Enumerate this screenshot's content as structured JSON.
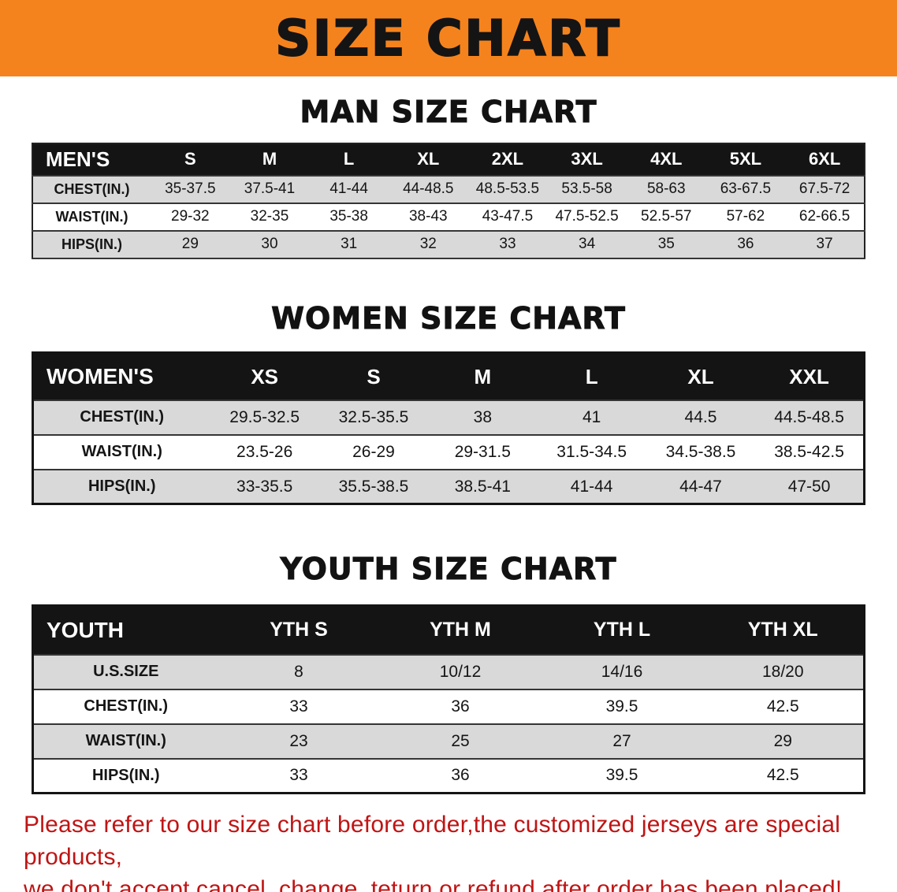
{
  "banner": {
    "title": "SIZE CHART"
  },
  "colors": {
    "banner_bg": "#f5831d",
    "table_header_bg": "#141414",
    "row_stripe": "#d9d9d9",
    "disclaimer_text": "#c01414",
    "title_text": "#141414"
  },
  "sections": [
    {
      "id": "men",
      "heading": "MAN SIZE CHART",
      "table": {
        "header": [
          "MEN'S",
          "S",
          "M",
          "L",
          "XL",
          "2XL",
          "3XL",
          "4XL",
          "5XL",
          "6XL"
        ],
        "rows": [
          [
            "CHEST(IN.)",
            "35-37.5",
            "37.5-41",
            "41-44",
            "44-48.5",
            "48.5-53.5",
            "53.5-58",
            "58-63",
            "63-67.5",
            "67.5-72"
          ],
          [
            "WAIST(IN.)",
            "29-32",
            "32-35",
            "35-38",
            "38-43",
            "43-47.5",
            "47.5-52.5",
            "52.5-57",
            "57-62",
            "62-66.5"
          ],
          [
            "HIPS(IN.)",
            "29",
            "30",
            "31",
            "32",
            "33",
            "34",
            "35",
            "36",
            "37"
          ]
        ]
      }
    },
    {
      "id": "women",
      "heading": "WOMEN SIZE CHART",
      "table": {
        "header": [
          "WOMEN'S",
          "XS",
          "S",
          "M",
          "L",
          "XL",
          "XXL"
        ],
        "rows": [
          [
            "CHEST(IN.)",
            "29.5-32.5",
            "32.5-35.5",
            "38",
            "41",
            "44.5",
            "44.5-48.5"
          ],
          [
            "WAIST(IN.)",
            "23.5-26",
            "26-29",
            "29-31.5",
            "31.5-34.5",
            "34.5-38.5",
            "38.5-42.5"
          ],
          [
            "HIPS(IN.)",
            "33-35.5",
            "35.5-38.5",
            "38.5-41",
            "41-44",
            "44-47",
            "47-50"
          ]
        ]
      }
    },
    {
      "id": "youth",
      "heading": "YOUTH SIZE CHART",
      "table": {
        "header": [
          "YOUTH",
          "YTH S",
          "YTH M",
          "YTH L",
          "YTH XL"
        ],
        "rows": [
          [
            "U.S.SIZE",
            "8",
            "10/12",
            "14/16",
            "18/20"
          ],
          [
            "CHEST(IN.)",
            "33",
            "36",
            "39.5",
            "42.5"
          ],
          [
            "WAIST(IN.)",
            "23",
            "25",
            "27",
            "29"
          ],
          [
            "HIPS(IN.)",
            "33",
            "36",
            "39.5",
            "42.5"
          ]
        ]
      }
    }
  ],
  "disclaimer": {
    "line1": "Please refer to our size chart before order,the customized jerseys are special products,",
    "line2": "we don't accept cancel, change, teturn or refund after order has been placed!"
  }
}
